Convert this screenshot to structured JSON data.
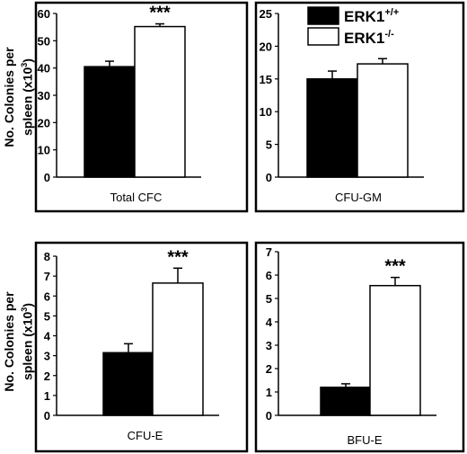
{
  "figure": {
    "ylabel_lines": [
      "No. Colonies per",
      "spleen (x10",
      "3",
      ")"
    ]
  },
  "legend": {
    "items": [
      {
        "label": "ERK1",
        "sup": "+/+",
        "fill": "#000000"
      },
      {
        "label": "ERK1",
        "sup": "-/-",
        "fill": "#ffffff"
      }
    ]
  },
  "chart_data": [
    {
      "type": "bar",
      "xlabel": "Total CFC",
      "categories": [
        "ERK1+/+",
        "ERK1-/-"
      ],
      "values": [
        40.5,
        55.2
      ],
      "errors": [
        2.0,
        1.0
      ],
      "ylim": [
        0,
        60
      ],
      "yticks": [
        0,
        10,
        20,
        30,
        40,
        50,
        60
      ],
      "significance": "***",
      "significance_on": 1
    },
    {
      "type": "bar",
      "xlabel": "CFU-GM",
      "categories": [
        "ERK1+/+",
        "ERK1-/-"
      ],
      "values": [
        15.0,
        17.3
      ],
      "errors": [
        1.2,
        0.8
      ],
      "ylim": [
        0,
        25
      ],
      "yticks": [
        0,
        5,
        10,
        15,
        20,
        25
      ],
      "significance": "",
      "significance_on": null
    },
    {
      "type": "bar",
      "xlabel": "CFU-E",
      "categories": [
        "ERK1+/+",
        "ERK1-/-"
      ],
      "values": [
        3.15,
        6.65
      ],
      "errors": [
        0.45,
        0.75
      ],
      "ylim": [
        0,
        8
      ],
      "yticks": [
        0,
        1,
        2,
        3,
        4,
        5,
        6,
        7,
        8
      ],
      "significance": "***",
      "significance_on": 1
    },
    {
      "type": "bar",
      "xlabel": "BFU-E",
      "categories": [
        "ERK1+/+",
        "ERK1-/-"
      ],
      "values": [
        1.2,
        5.55
      ],
      "errors": [
        0.15,
        0.35
      ],
      "ylim": [
        0,
        7
      ],
      "yticks": [
        0,
        1,
        2,
        3,
        4,
        5,
        6,
        7
      ],
      "significance": "***",
      "significance_on": 1
    }
  ]
}
